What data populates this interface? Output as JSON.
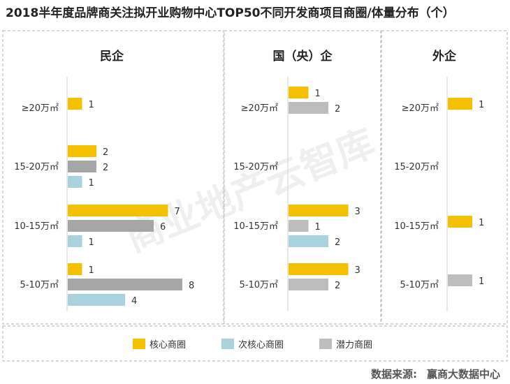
{
  "title": "2018半年度品牌商关注拟开业购物中心TOP50不同开发商项目商圈/体量分布（个）",
  "watermark": "商业地产云智库",
  "source_label": "数据来源:",
  "source_value": "赢商大数据中心",
  "colors": {
    "core": "#F5C000",
    "sub_core": "#A9D2DE",
    "potential": "#BDBDBD",
    "potential_dark": "#A6A6A6",
    "frame": "#BFBFBF"
  },
  "chart_data": {
    "type": "bar",
    "orientation": "horizontal",
    "categories": [
      "≥20万㎡",
      "15-20万㎡",
      "10-15万㎡",
      "5-10万㎡"
    ],
    "legend": [
      {
        "key": "core",
        "label": "核心商圈"
      },
      {
        "key": "sub_core",
        "label": "次核心商圈"
      },
      {
        "key": "potential",
        "label": "潜力商圈"
      }
    ],
    "legend_position": "bottom",
    "grid": false,
    "panels": [
      {
        "name": "民企",
        "series": [
          {
            "name": "核心商圈",
            "values": [
              1,
              2,
              7,
              1
            ]
          },
          {
            "name": "次核心商圈",
            "values": [
              null,
              1,
              1,
              4
            ]
          },
          {
            "name": "潜力商圈",
            "values": [
              null,
              2,
              6,
              8
            ]
          }
        ]
      },
      {
        "name": "国（央）企",
        "series": [
          {
            "name": "核心商圈",
            "values": [
              1,
              null,
              3,
              3
            ]
          },
          {
            "name": "次核心商圈",
            "values": [
              null,
              null,
              2,
              null
            ]
          },
          {
            "name": "潜力商圈",
            "values": [
              2,
              null,
              1,
              2
            ]
          }
        ]
      },
      {
        "name": "外企",
        "series": [
          {
            "name": "核心商圈",
            "values": [
              1,
              null,
              1,
              null
            ]
          },
          {
            "name": "次核心商圈",
            "values": [
              null,
              null,
              null,
              null
            ]
          },
          {
            "name": "潜力商圈",
            "values": [
              null,
              null,
              null,
              1
            ]
          }
        ]
      }
    ]
  }
}
